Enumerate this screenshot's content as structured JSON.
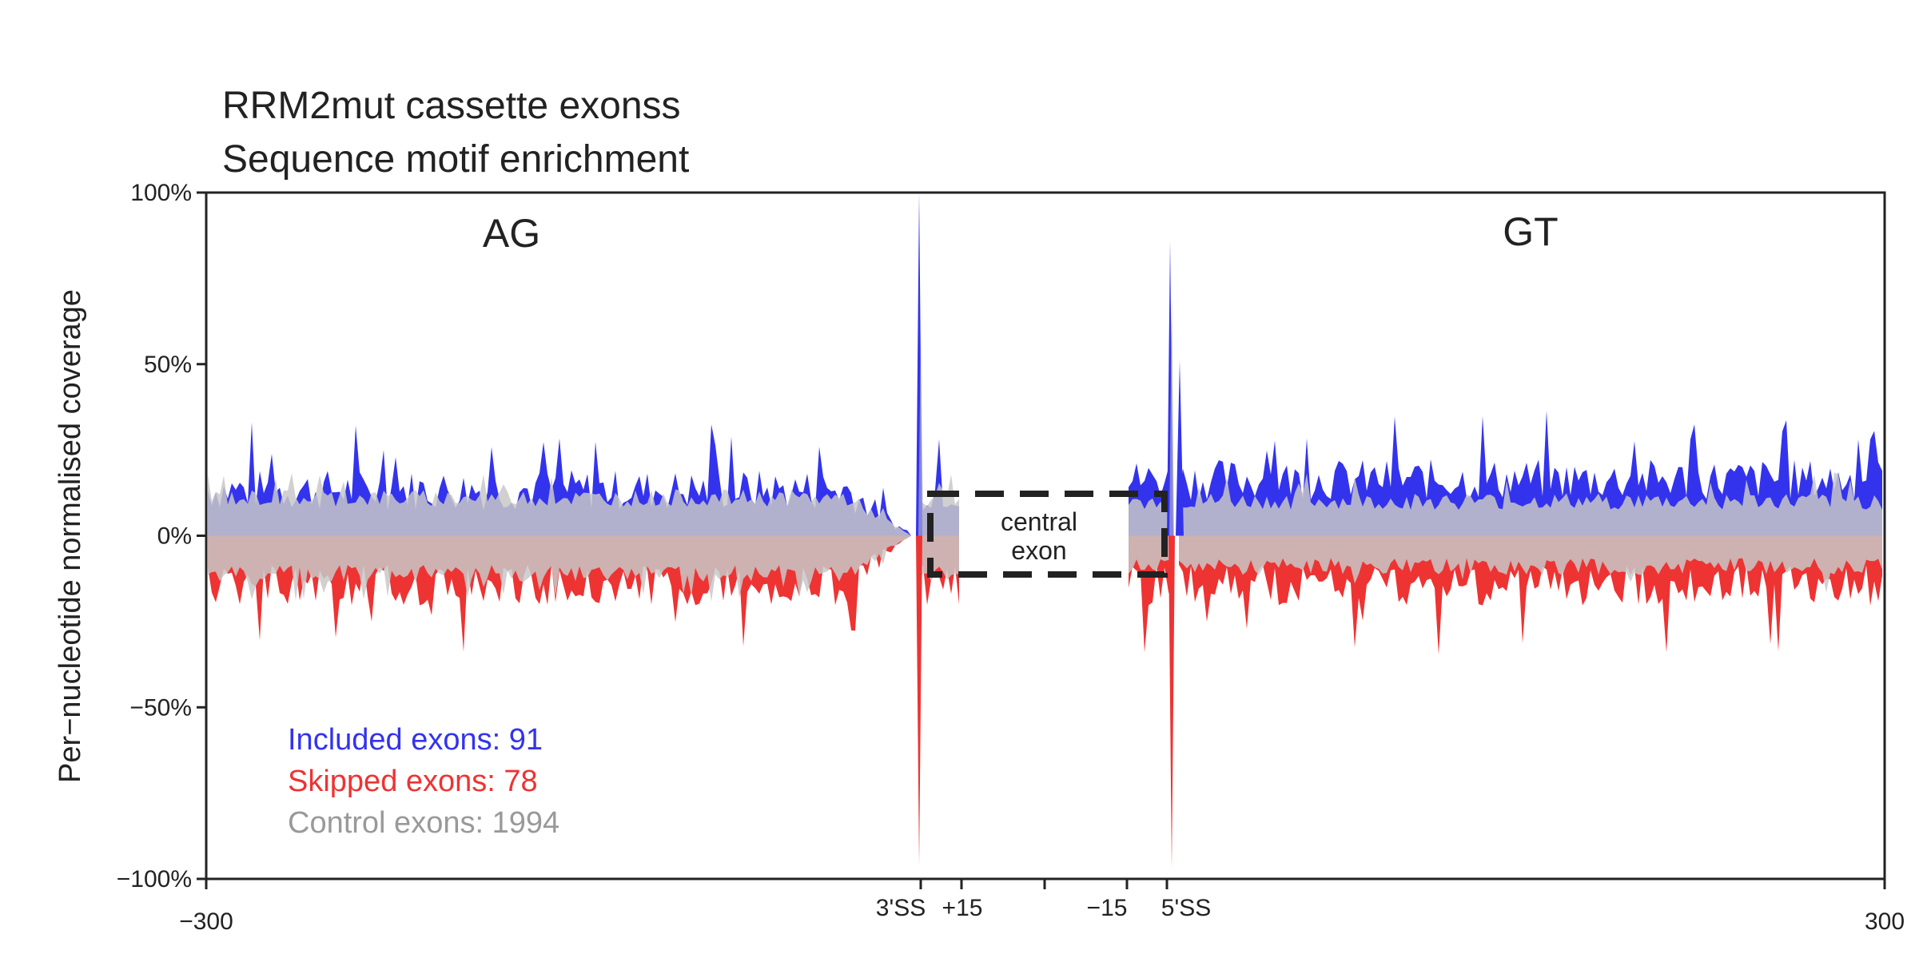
{
  "chart_data": {
    "type": "area",
    "title": "RRM2mut cassette exonss",
    "subtitle": "Sequence motif enrichment",
    "ylabel": "Per−nucleotide normalised coverage",
    "xlabel": "",
    "ylim": [
      -100,
      100
    ],
    "y_ticks": [
      {
        "value": 100,
        "label": "100%"
      },
      {
        "value": 50,
        "label": "50%"
      },
      {
        "value": 0,
        "label": "0%"
      },
      {
        "value": -50,
        "label": "−50%"
      },
      {
        "value": -100,
        "label": "−100%"
      }
    ],
    "x_tick_labels": {
      "left_end": "−300",
      "ss3": "3'SS",
      "plus15": "+15",
      "minus15": "−15",
      "ss5": "5'SS",
      "right_end": "300"
    },
    "motif_labels": {
      "upstream": "AG",
      "downstream": "GT"
    },
    "central_exon_label": [
      "central",
      "exon"
    ],
    "legend": [
      {
        "label": "Included exons: 91",
        "color": "#3333ee"
      },
      {
        "label": "Skipped exons: 78",
        "color": "#ee3333"
      },
      {
        "label": "Control exons: 1994",
        "color": "#999999"
      }
    ],
    "series": [
      {
        "name": "Included exons: 91",
        "color": "#3333ee",
        "upstream_typical_level": 17,
        "upstream_peak_at_3ss": 100,
        "downstream_peak_at_5ss": 86,
        "downstream_secondary_peak": 51,
        "downstream_typical_level": 20
      },
      {
        "name": "Skipped exons: 78",
        "color": "#ee3333",
        "upstream_typical_level": -17,
        "upstream_peak_at_3ss": -96,
        "downstream_peak_at_5ss": -97,
        "downstream_typical_level": -17
      },
      {
        "name": "Control exons: 1994",
        "color": "#cccccc",
        "upstream_typical_level": 13,
        "downstream_typical_level": 11,
        "upstream_negative_level": -13,
        "downstream_negative_level": -11
      }
    ]
  }
}
